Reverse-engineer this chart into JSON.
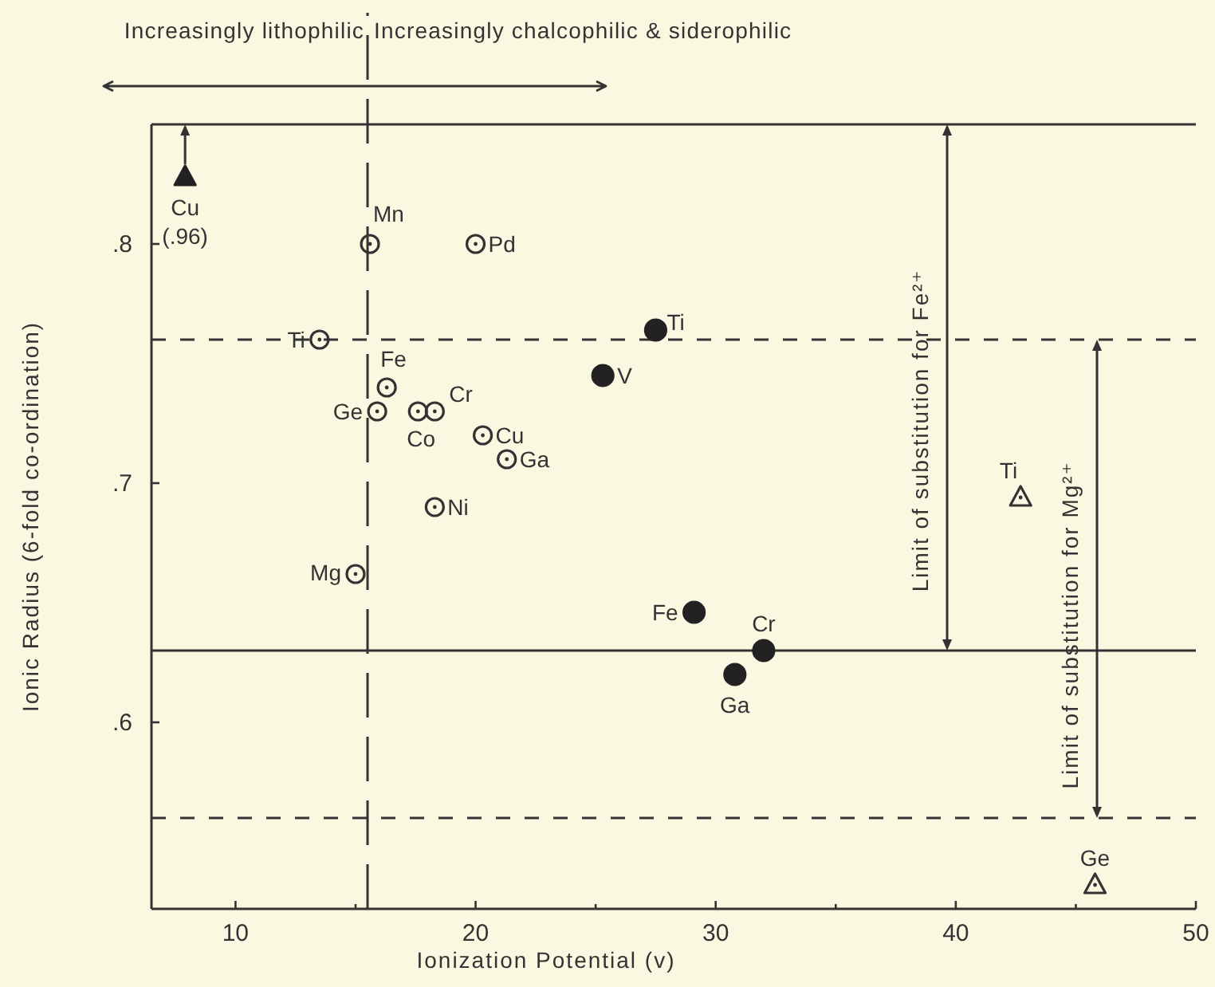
{
  "chart_data": {
    "type": "scatter",
    "xlabel": "Ionization Potential (v)",
    "ylabel": "Ionic Radius (6-fold co-ordination)",
    "xlim": [
      6.5,
      50
    ],
    "ylim": [
      0.522,
      0.85
    ],
    "xticks": [
      10,
      {
        "value": 15,
        "label": null
      },
      20,
      {
        "value": 25,
        "label": null
      },
      30,
      {
        "value": 35,
        "label": null
      },
      40,
      {
        "value": 45,
        "label": null
      },
      50
    ],
    "yticks": [
      {
        "value": 0.6,
        "label": ".6"
      },
      {
        "value": 0.7,
        "label": ".7"
      },
      {
        "value": 0.8,
        "label": ".8"
      }
    ],
    "series": [
      {
        "color": "#333333",
        "marker": "circle",
        "x": [
          15.6,
          20.0,
          13.5,
          16.3,
          15.9,
          17.6,
          18.3,
          20.3,
          21.3,
          18.3,
          15.0
        ],
        "values": [
          0.8,
          0.8,
          0.76,
          0.74,
          0.73,
          0.73,
          0.73,
          0.72,
          0.71,
          0.69,
          0.662
        ]
      },
      {
        "color": "#222222",
        "marker": "circle",
        "x": [
          27.5,
          25.3,
          29.1,
          32.0,
          30.8
        ],
        "values": [
          0.764,
          0.745,
          0.646,
          0.63,
          0.62
        ]
      },
      {
        "color": "#333333",
        "marker": "triangle",
        "x": [
          42.7,
          45.8
        ],
        "values": [
          0.694,
          0.532
        ]
      },
      {
        "color": "#222222",
        "marker": "triangle",
        "x": [
          7.9
        ],
        "values": [
          0.828
        ]
      }
    ],
    "ref_lines": [
      {
        "axis": "y",
        "value": 0.85,
        "color": "#333333",
        "line_style": "solid"
      },
      {
        "axis": "y",
        "value": 0.63,
        "color": "#333333",
        "line_style": "solid"
      },
      {
        "axis": "y",
        "value": 0.76,
        "color": "#333333",
        "line_style": "dashed"
      },
      {
        "axis": "y",
        "value": 0.56,
        "color": "#333333",
        "line_style": "dashed"
      },
      {
        "axis": "x",
        "value": 15.5,
        "color": "#333333",
        "line_style": "dashed"
      }
    ],
    "annotations": [
      "Increasingly lithophilic",
      "Increasingly chalcophilic & siderophilic",
      "Limit of substitution for Fe²⁺",
      "Limit of substitution for Mg²⁺",
      {
        "text": "(.96)",
        "x": 7.9,
        "y": 0.828
      },
      {
        "text": "Cu",
        "x": 7.9,
        "y": 0.828
      },
      {
        "text": "Mn",
        "x": 15.6,
        "y": 0.8
      },
      {
        "text": "Pd",
        "x": 20.0,
        "y": 0.8
      },
      {
        "text": "Ti",
        "x": 13.5,
        "y": 0.76
      },
      {
        "text": "Fe",
        "x": 16.3,
        "y": 0.74
      },
      {
        "text": "Ge",
        "x": 15.9,
        "y": 0.73
      },
      {
        "text": "Co",
        "x": 17.6,
        "y": 0.73
      },
      {
        "text": "Cr",
        "x": 18.3,
        "y": 0.73
      },
      {
        "text": "Cu",
        "x": 20.3,
        "y": 0.72
      },
      {
        "text": "Ga",
        "x": 21.3,
        "y": 0.71
      },
      {
        "text": "Ni",
        "x": 18.3,
        "y": 0.69
      },
      {
        "text": "Mg",
        "x": 15.0,
        "y": 0.662
      },
      {
        "text": "Ti",
        "x": 27.5,
        "y": 0.764
      },
      {
        "text": "V",
        "x": 25.3,
        "y": 0.745
      },
      {
        "text": "Fe",
        "x": 29.1,
        "y": 0.646
      },
      {
        "text": "Cr",
        "x": 32.0,
        "y": 0.63
      },
      {
        "text": "Ga",
        "x": 30.8,
        "y": 0.62
      },
      {
        "text": "Ti",
        "x": 42.7,
        "y": 0.694
      },
      {
        "text": "Ge",
        "x": 45.8,
        "y": 0.532
      }
    ]
  }
}
